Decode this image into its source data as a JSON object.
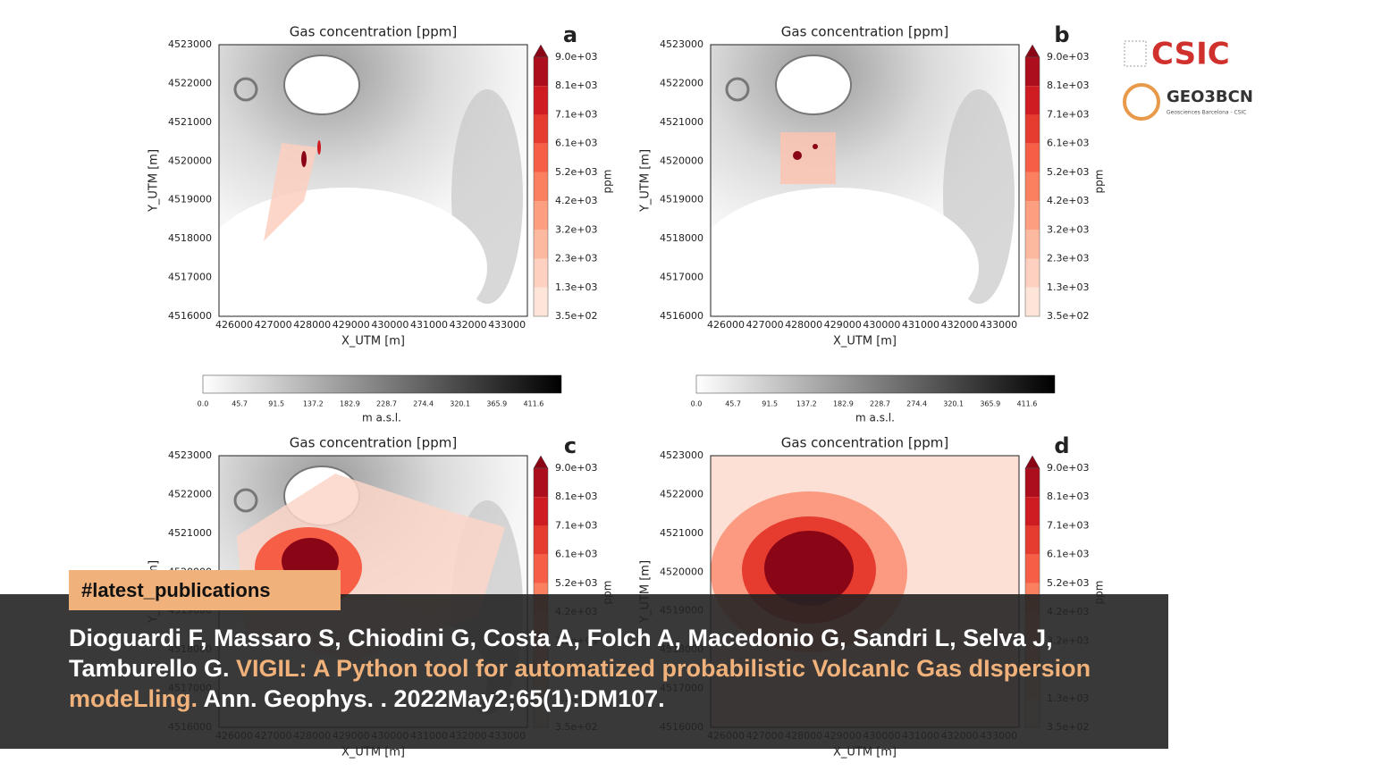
{
  "axes": {
    "yticks": [
      "4523000",
      "4522000",
      "4521000",
      "4520000",
      "4519000",
      "4518000",
      "4517000",
      "4516000"
    ],
    "xticks": [
      "426000",
      "427000",
      "428000",
      "429000",
      "430000",
      "431000",
      "432000",
      "433000"
    ],
    "colorbar_ticks": [
      "9.0e+03",
      "8.1e+03",
      "7.1e+03",
      "6.1e+03",
      "5.2e+03",
      "4.2e+03",
      "3.2e+03",
      "2.3e+03",
      "1.3e+03",
      "3.5e+02"
    ]
  },
  "panels": [
    {
      "title": "Gas concentration [ppm]",
      "letter": "a",
      "xlabel": "X_UTM [m]",
      "ylabel": "Y_UTM [m]",
      "colorbar_label": "ppm"
    },
    {
      "title": "Gas concentration [ppm]",
      "letter": "b",
      "xlabel": "X_UTM [m]",
      "ylabel": "Y_UTM [m]",
      "colorbar_label": "ppm"
    },
    {
      "title": "Gas concentration [ppm]",
      "letter": "c",
      "xlabel": "X_UTM [m]",
      "ylabel": "Y_UTM [m]",
      "colorbar_label": "ppm"
    },
    {
      "title": "Gas concentration [ppm]",
      "letter": "d",
      "xlabel": "X_UTM [m]",
      "ylabel": "Y_UTM [m]",
      "colorbar_label": "ppm"
    }
  ],
  "elevation_colorbar": {
    "ticks": [
      "0.0",
      "45.7",
      "91.5",
      "137.2",
      "182.9",
      "228.7",
      "274.4",
      "320.1",
      "365.9",
      "411.6"
    ],
    "label": "m a.s.l."
  },
  "logos": {
    "csic": "CSIC",
    "geo3bcn": "GEO3BCN",
    "geo3bcn_sub": "Geosciences Barcelona - CSIC"
  },
  "banner": {
    "tag": "#latest_publications",
    "authors": "Dioguardi F, Massaro S, Chiodini G, Costa A, Folch A, Macedonio G, Sandri L, Selva J, Tamburello G.",
    "title": "VIGIL: A Python tool for automatized probabilistic VolcanIc Gas dIspersion modeLling.",
    "journal": "Ann. Geophys. . 2022May2;65(1):DM107."
  }
}
